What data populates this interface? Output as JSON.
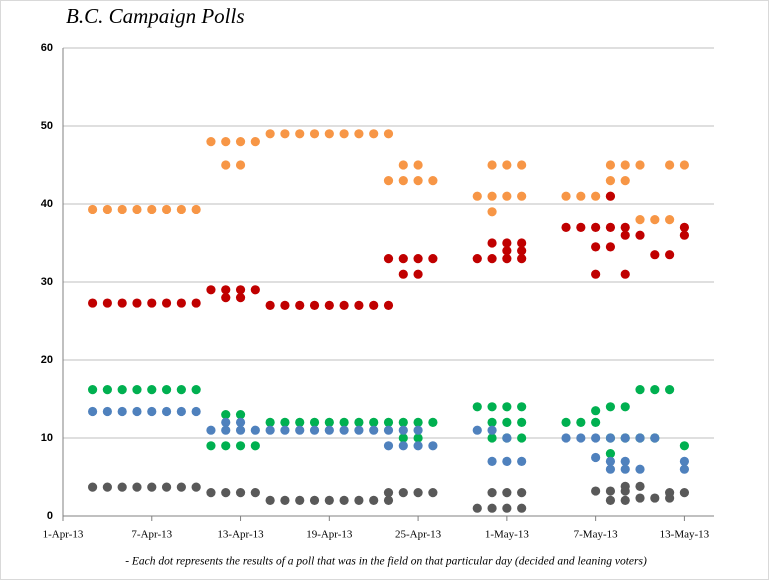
{
  "chart_data": {
    "type": "scatter",
    "title": "B.C. Campaign Polls",
    "note": "- Each dot represents the results of a poll that was in the field on that particular day (decided and leaning voters)",
    "xlim": [
      "2013-04-01",
      "2013-05-15"
    ],
    "xticks": [
      {
        "value": "2013-04-01",
        "label": "1-Apr-13"
      },
      {
        "value": "2013-04-07",
        "label": "7-Apr-13"
      },
      {
        "value": "2013-04-13",
        "label": "13-Apr-13"
      },
      {
        "value": "2013-04-19",
        "label": "19-Apr-13"
      },
      {
        "value": "2013-04-25",
        "label": "25-Apr-13"
      },
      {
        "value": "2013-05-01",
        "label": "1-May-13"
      },
      {
        "value": "2013-05-07",
        "label": "7-May-13"
      },
      {
        "value": "2013-05-13",
        "label": "13-May-13"
      }
    ],
    "ylim": [
      0,
      60
    ],
    "yticks": [
      0,
      10,
      20,
      30,
      40,
      50,
      60
    ],
    "grid": true,
    "series": [
      {
        "color": "#f79646",
        "x": [
          "2013-04-03",
          "2013-04-04",
          "2013-04-05",
          "2013-04-06",
          "2013-04-07",
          "2013-04-08",
          "2013-04-09",
          "2013-04-10",
          "2013-04-11",
          "2013-04-12",
          "2013-04-13",
          "2013-04-14",
          "2013-04-12",
          "2013-04-13",
          "2013-04-15",
          "2013-04-16",
          "2013-04-17",
          "2013-04-18",
          "2013-04-19",
          "2013-04-20",
          "2013-04-21",
          "2013-04-22",
          "2013-04-23",
          "2013-04-23",
          "2013-04-24",
          "2013-04-25",
          "2013-04-26",
          "2013-04-24",
          "2013-04-25",
          "2013-04-29",
          "2013-04-30",
          "2013-05-01",
          "2013-05-02",
          "2013-04-30",
          "2013-05-01",
          "2013-05-02",
          "2013-04-30",
          "2013-05-05",
          "2013-05-06",
          "2013-05-07",
          "2013-05-08",
          "2013-05-08",
          "2013-05-09",
          "2013-05-10",
          "2013-05-12",
          "2013-05-13",
          "2013-05-08",
          "2013-05-09",
          "2013-05-10",
          "2013-05-11",
          "2013-05-12"
        ],
        "values": [
          39.3,
          39.3,
          39.3,
          39.3,
          39.3,
          39.3,
          39.3,
          39.3,
          48,
          48,
          48,
          48,
          45,
          45,
          49,
          49,
          49,
          49,
          49,
          49,
          49,
          49,
          49,
          43,
          43,
          43,
          43,
          45,
          45,
          41,
          41,
          41,
          41,
          45,
          45,
          45,
          39,
          41,
          41,
          41,
          41,
          45,
          45,
          45,
          45,
          45,
          43,
          43,
          38,
          38,
          38
        ]
      },
      {
        "color": "#c00000",
        "x": [
          "2013-04-03",
          "2013-04-04",
          "2013-04-05",
          "2013-04-06",
          "2013-04-07",
          "2013-04-08",
          "2013-04-09",
          "2013-04-10",
          "2013-04-11",
          "2013-04-12",
          "2013-04-13",
          "2013-04-14",
          "2013-04-12",
          "2013-04-13",
          "2013-04-15",
          "2013-04-16",
          "2013-04-17",
          "2013-04-18",
          "2013-04-19",
          "2013-04-20",
          "2013-04-21",
          "2013-04-22",
          "2013-04-23",
          "2013-04-23",
          "2013-04-24",
          "2013-04-25",
          "2013-04-26",
          "2013-04-24",
          "2013-04-25",
          "2013-04-29",
          "2013-04-30",
          "2013-05-01",
          "2013-05-02",
          "2013-04-30",
          "2013-05-01",
          "2013-05-02",
          "2013-05-01",
          "2013-05-02",
          "2013-05-05",
          "2013-05-06",
          "2013-05-07",
          "2013-05-08",
          "2013-05-09",
          "2013-05-07",
          "2013-05-08",
          "2013-05-07",
          "2013-05-09",
          "2013-05-09",
          "2013-05-10",
          "2013-05-13",
          "2013-05-11",
          "2013-05-12",
          "2013-05-13",
          "2013-05-08"
        ],
        "values": [
          27.3,
          27.3,
          27.3,
          27.3,
          27.3,
          27.3,
          27.3,
          27.3,
          29,
          29,
          29,
          29,
          28,
          28,
          27,
          27,
          27,
          27,
          27,
          27,
          27,
          27,
          27,
          33,
          33,
          33,
          33,
          31,
          31,
          33,
          33,
          33,
          33,
          35,
          35,
          35,
          34,
          34,
          37,
          37,
          37,
          37,
          37,
          34.5,
          34.5,
          31,
          31,
          36,
          36,
          36,
          33.5,
          33.5,
          37,
          41
        ]
      },
      {
        "color": "#00b050",
        "x": [
          "2013-04-03",
          "2013-04-04",
          "2013-04-05",
          "2013-04-06",
          "2013-04-07",
          "2013-04-08",
          "2013-04-09",
          "2013-04-10",
          "2013-04-12",
          "2013-04-13",
          "2013-04-11",
          "2013-04-12",
          "2013-04-13",
          "2013-04-14",
          "2013-04-15",
          "2013-04-16",
          "2013-04-17",
          "2013-04-18",
          "2013-04-19",
          "2013-04-20",
          "2013-04-21",
          "2013-04-22",
          "2013-04-23",
          "2013-04-24",
          "2013-04-25",
          "2013-04-26",
          "2013-04-24",
          "2013-04-25",
          "2013-04-29",
          "2013-04-30",
          "2013-05-01",
          "2013-05-02",
          "2013-04-30",
          "2013-05-01",
          "2013-05-02",
          "2013-04-30",
          "2013-05-01",
          "2013-05-02",
          "2013-05-05",
          "2013-05-06",
          "2013-05-07",
          "2013-05-07",
          "2013-05-08",
          "2013-05-09",
          "2013-05-10",
          "2013-05-11",
          "2013-05-12",
          "2013-05-13",
          "2013-05-08",
          "2013-05-09",
          "2013-05-10",
          "2013-05-11",
          "2013-05-08"
        ],
        "values": [
          16.2,
          16.2,
          16.2,
          16.2,
          16.2,
          16.2,
          16.2,
          16.2,
          13,
          13,
          9,
          9,
          9,
          9,
          12,
          12,
          12,
          12,
          12,
          12,
          12,
          12,
          12,
          12,
          12,
          12,
          10,
          10,
          14,
          14,
          14,
          14,
          12,
          12,
          12,
          10,
          10,
          10,
          12,
          12,
          12,
          13.5,
          14,
          14,
          16.2,
          16.2,
          16.2,
          9,
          10,
          10,
          10,
          10,
          8
        ]
      },
      {
        "color": "#4f81bd",
        "x": [
          "2013-04-03",
          "2013-04-04",
          "2013-04-05",
          "2013-04-06",
          "2013-04-07",
          "2013-04-08",
          "2013-04-09",
          "2013-04-10",
          "2013-04-11",
          "2013-04-14",
          "2013-04-12",
          "2013-04-13",
          "2013-04-12",
          "2013-04-13",
          "2013-04-15",
          "2013-04-16",
          "2013-04-17",
          "2013-04-18",
          "2013-04-19",
          "2013-04-20",
          "2013-04-21",
          "2013-04-22",
          "2013-04-23",
          "2013-04-23",
          "2013-04-24",
          "2013-04-25",
          "2013-04-26",
          "2013-04-24",
          "2013-04-25",
          "2013-04-29",
          "2013-04-30",
          "2013-04-30",
          "2013-05-01",
          "2013-05-02",
          "2013-05-01",
          "2013-05-05",
          "2013-05-06",
          "2013-05-07",
          "2013-05-08",
          "2013-05-09",
          "2013-05-10",
          "2013-05-11",
          "2013-05-07",
          "2013-05-08",
          "2013-05-09",
          "2013-05-13",
          "2013-05-08",
          "2013-05-09",
          "2013-05-10",
          "2013-05-13"
        ],
        "values": [
          13.4,
          13.4,
          13.4,
          13.4,
          13.4,
          13.4,
          13.4,
          13.4,
          11,
          11,
          12,
          12,
          11,
          11,
          11,
          11,
          11,
          11,
          11,
          11,
          11,
          11,
          11,
          9,
          9,
          9,
          9,
          11,
          11,
          11,
          11,
          7,
          7,
          7,
          10,
          10,
          10,
          10,
          10,
          10,
          10,
          10,
          7.5,
          7,
          7,
          7,
          6,
          6,
          6,
          6
        ]
      },
      {
        "color": "#595959",
        "x": [
          "2013-04-03",
          "2013-04-04",
          "2013-04-05",
          "2013-04-06",
          "2013-04-07",
          "2013-04-08",
          "2013-04-09",
          "2013-04-10",
          "2013-04-11",
          "2013-04-12",
          "2013-04-13",
          "2013-04-14",
          "2013-04-15",
          "2013-04-16",
          "2013-04-17",
          "2013-04-18",
          "2013-04-19",
          "2013-04-20",
          "2013-04-21",
          "2013-04-22",
          "2013-04-23",
          "2013-04-23",
          "2013-04-24",
          "2013-04-25",
          "2013-04-26",
          "2013-04-29",
          "2013-04-30",
          "2013-05-01",
          "2013-05-02",
          "2013-04-30",
          "2013-05-01",
          "2013-05-02",
          "2013-05-07",
          "2013-05-08",
          "2013-05-09",
          "2013-05-08",
          "2013-05-09",
          "2013-05-10",
          "2013-05-11",
          "2013-05-09",
          "2013-05-10",
          "2013-05-12",
          "2013-05-13",
          "2013-05-12"
        ],
        "values": [
          3.7,
          3.7,
          3.7,
          3.7,
          3.7,
          3.7,
          3.7,
          3.7,
          3,
          3,
          3,
          3,
          2,
          2,
          2,
          2,
          2,
          2,
          2,
          2,
          2,
          3,
          3,
          3,
          3,
          1,
          1,
          1,
          1,
          3,
          3,
          3,
          3.2,
          3.2,
          3.2,
          2,
          2,
          2.3,
          2.3,
          3.8,
          3.8,
          3,
          3,
          2.3
        ]
      }
    ]
  }
}
